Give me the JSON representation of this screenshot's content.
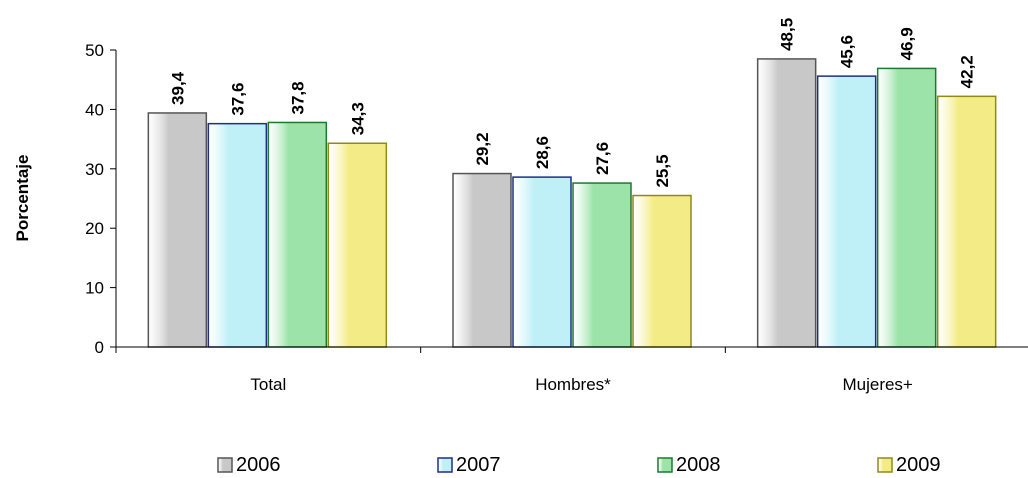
{
  "chart_data": {
    "type": "bar",
    "categories": [
      "Total",
      "Hombres*",
      "Mujeres+"
    ],
    "series": [
      {
        "name": "2006",
        "values": [
          39.4,
          29.2,
          48.5
        ],
        "color": "#c8c8c8",
        "border": "#555555"
      },
      {
        "name": "2007",
        "values": [
          37.6,
          28.6,
          45.6
        ],
        "color": "#bff0f8",
        "border": "#1f2f86"
      },
      {
        "name": "2008",
        "values": [
          37.8,
          27.6,
          46.9
        ],
        "color": "#9be3a8",
        "border": "#1c7a2c"
      },
      {
        "name": "2009",
        "values": [
          34.3,
          25.5,
          42.2
        ],
        "color": "#f3ec86",
        "border": "#8f8a18"
      }
    ],
    "data_labels": [
      [
        "39,4",
        "37,6",
        "37,8",
        "34,3"
      ],
      [
        "29,2",
        "28,6",
        "27,6",
        "25,5"
      ],
      [
        "48,5",
        "45,6",
        "46,9",
        "42,2"
      ]
    ],
    "yticks": [
      0,
      10,
      20,
      30,
      40,
      50
    ],
    "ytick_labels": [
      "0",
      "10",
      "20",
      "30",
      "40",
      "50"
    ],
    "ylim": [
      0,
      50
    ],
    "xlabel": "",
    "ylabel": "Porcentaje",
    "title": "",
    "grid": false,
    "legend_position": "bottom"
  }
}
